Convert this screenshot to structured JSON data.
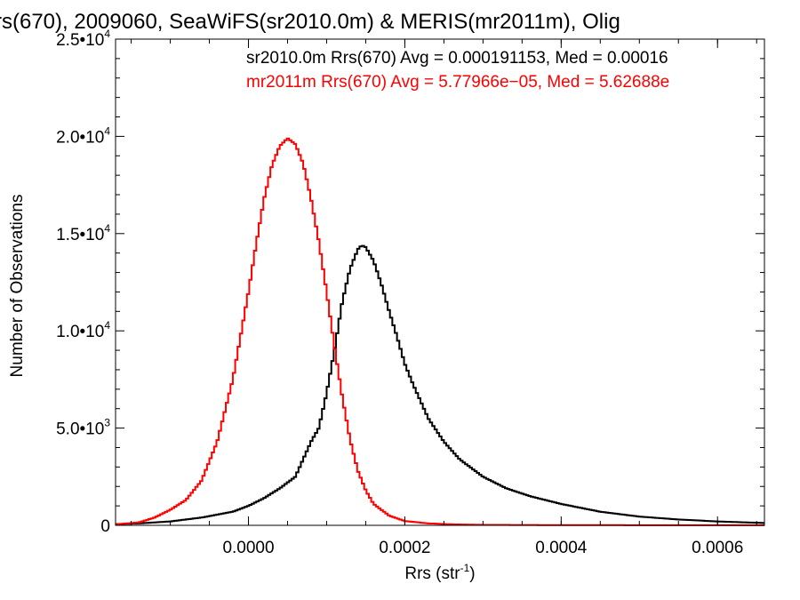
{
  "chart_data": {
    "type": "histogram-line",
    "title": "rs(670), 2009060, SeaWiFS(sr2010.0m) & MERIS(mr2011m), Olig",
    "xlabel": "Rrs (str",
    "xlabel_sup": "-1",
    "xlabel_close": ")",
    "ylabel": "Number of Observations",
    "xlim": [
      -0.00017,
      0.00066
    ],
    "ylim": [
      0,
      25000
    ],
    "grid": false,
    "x_ticks": [
      {
        "value": 0.0,
        "label": "0.0000"
      },
      {
        "value": 0.0002,
        "label": "0.0002"
      },
      {
        "value": 0.0004,
        "label": "0.0004"
      },
      {
        "value": 0.0006,
        "label": "0.0006"
      }
    ],
    "y_ticks": [
      {
        "value": 0,
        "label": "0",
        "exp": ""
      },
      {
        "value": 5000,
        "label": "5.0•10",
        "exp": "3"
      },
      {
        "value": 10000,
        "label": "1.0•10",
        "exp": "4"
      },
      {
        "value": 15000,
        "label": "1.5•10",
        "exp": "4"
      },
      {
        "value": 20000,
        "label": "2.0•10",
        "exp": "4"
      },
      {
        "value": 25000,
        "label": "2.5•10",
        "exp": "4"
      }
    ],
    "annotations": [
      {
        "text": "sr2010.0m Rrs(670) Avg = 0.000191153, Med = 0.00016",
        "color": "#000000"
      },
      {
        "text": "mr2011m Rrs(670) Avg = 5.77966e−05, Med = 5.62688e",
        "color": "#ff0000"
      }
    ],
    "series": [
      {
        "color": "#000000",
        "points": [
          [
            -0.00017,
            60
          ],
          [
            -0.00014,
            100
          ],
          [
            -0.0001,
            200
          ],
          [
            -6e-05,
            400
          ],
          [
            -2e-05,
            700
          ],
          [
            0.0,
            1000
          ],
          [
            2e-05,
            1400
          ],
          [
            4e-05,
            1900
          ],
          [
            6e-05,
            2500
          ],
          [
            8e-05,
            4300
          ],
          [
            9e-05,
            5000
          ],
          [
            0.0001,
            6800
          ],
          [
            0.00011,
            9000
          ],
          [
            0.00012,
            11500
          ],
          [
            0.00013,
            13200
          ],
          [
            0.00014,
            14200
          ],
          [
            0.000145,
            14400
          ],
          [
            0.00015,
            14300
          ],
          [
            0.00016,
            13600
          ],
          [
            0.00017,
            12400
          ],
          [
            0.00018,
            11000
          ],
          [
            0.00019,
            9700
          ],
          [
            0.0002,
            8300
          ],
          [
            0.00021,
            7300
          ],
          [
            0.00022,
            6400
          ],
          [
            0.00023,
            5500
          ],
          [
            0.00025,
            4300
          ],
          [
            0.00027,
            3400
          ],
          [
            0.0003,
            2500
          ],
          [
            0.00033,
            1900
          ],
          [
            0.00036,
            1500
          ],
          [
            0.0004,
            1100
          ],
          [
            0.00045,
            700
          ],
          [
            0.0005,
            450
          ],
          [
            0.00055,
            300
          ],
          [
            0.0006,
            200
          ],
          [
            0.00066,
            120
          ]
        ]
      },
      {
        "color": "#ff0000",
        "points": [
          [
            -0.00017,
            50
          ],
          [
            -0.00014,
            150
          ],
          [
            -0.00012,
            400
          ],
          [
            -0.0001,
            800
          ],
          [
            -8e-05,
            1300
          ],
          [
            -6e-05,
            2300
          ],
          [
            -4e-05,
            4300
          ],
          [
            -2e-05,
            7500
          ],
          [
            0.0,
            12000
          ],
          [
            1e-05,
            14500
          ],
          [
            2e-05,
            16800
          ],
          [
            3e-05,
            18500
          ],
          [
            4e-05,
            19500
          ],
          [
            5e-05,
            19900
          ],
          [
            6e-05,
            19600
          ],
          [
            7e-05,
            18600
          ],
          [
            8e-05,
            16800
          ],
          [
            9e-05,
            14600
          ],
          [
            0.0001,
            12000
          ],
          [
            0.00011,
            9200
          ],
          [
            0.00012,
            6600
          ],
          [
            0.00013,
            4400
          ],
          [
            0.00014,
            2800
          ],
          [
            0.00015,
            1800
          ],
          [
            0.00016,
            1100
          ],
          [
            0.00018,
            500
          ],
          [
            0.0002,
            220
          ],
          [
            0.00023,
            100
          ],
          [
            0.00026,
            50
          ],
          [
            0.0003,
            25
          ],
          [
            0.0004,
            10
          ],
          [
            0.00066,
            5
          ]
        ]
      }
    ]
  }
}
